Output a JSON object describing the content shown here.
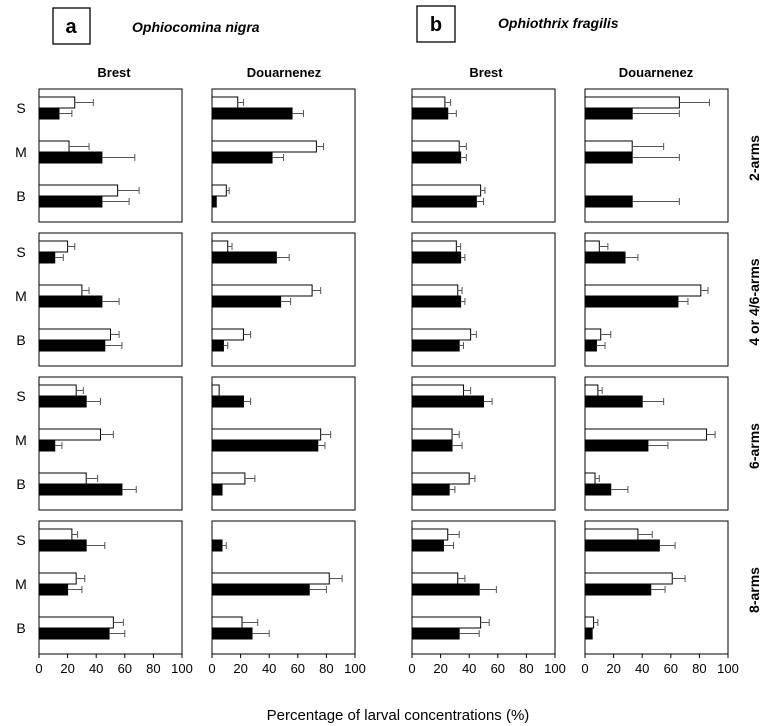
{
  "panels": [
    {
      "letter": "a",
      "species": "Ophiocomina nigra",
      "sites": [
        "Brest",
        "Douarnenez"
      ]
    },
    {
      "letter": "b",
      "species": "Ophiothrix fragilis",
      "sites": [
        "Brest",
        "Douarnenez"
      ]
    }
  ],
  "stage_labels": [
    "2-arms",
    "4 or 4/6-arms",
    "6-arms",
    "8-arms"
  ],
  "row_labels": [
    "S",
    "M",
    "B"
  ],
  "x_ticks": [
    "0",
    "20",
    "40",
    "60",
    "80",
    "100"
  ],
  "x_axis_label": "Percentage of larval concentrations (%)",
  "colors": {
    "open_bar": "#ffffff",
    "filled_bar": "#000000",
    "error_bar": "#555555",
    "frame": "#000000"
  },
  "chart_data": {
    "type": "bar",
    "orientation": "horizontal",
    "x_range": [
      0,
      100
    ],
    "series": [
      "open",
      "filled"
    ],
    "stages": [
      "2-arms",
      "4 or 4/6-arms",
      "6-arms",
      "8-arms"
    ],
    "rows": [
      "S",
      "M",
      "B"
    ],
    "subplots": [
      {
        "species": "Ophiocomina nigra",
        "site": "Brest",
        "stages": [
          {
            "S": {
              "open": [
                25,
                13
              ],
              "filled": [
                14,
                9
              ]
            },
            "M": {
              "open": [
                21,
                14
              ],
              "filled": [
                44,
                23
              ]
            },
            "B": {
              "open": [
                55,
                15
              ],
              "filled": [
                44,
                19
              ]
            }
          },
          {
            "S": {
              "open": [
                20,
                5
              ],
              "filled": [
                11,
                6
              ]
            },
            "M": {
              "open": [
                30,
                5
              ],
              "filled": [
                44,
                12
              ]
            },
            "B": {
              "open": [
                50,
                6
              ],
              "filled": [
                46,
                12
              ]
            }
          },
          {
            "S": {
              "open": [
                26,
                5
              ],
              "filled": [
                33,
                10
              ]
            },
            "M": {
              "open": [
                43,
                9
              ],
              "filled": [
                11,
                5
              ]
            },
            "B": {
              "open": [
                33,
                8
              ],
              "filled": [
                58,
                10
              ]
            }
          },
          {
            "S": {
              "open": [
                23,
                4
              ],
              "filled": [
                33,
                13
              ]
            },
            "M": {
              "open": [
                26,
                6
              ],
              "filled": [
                20,
                10
              ]
            },
            "B": {
              "open": [
                52,
                7
              ],
              "filled": [
                49,
                11
              ]
            }
          }
        ]
      },
      {
        "species": "Ophiocomina nigra",
        "site": "Douarnenez",
        "stages": [
          {
            "S": {
              "open": [
                18,
                4
              ],
              "filled": [
                56,
                8
              ]
            },
            "M": {
              "open": [
                73,
                5
              ],
              "filled": [
                42,
                8
              ]
            },
            "B": {
              "open": [
                10,
                2
              ],
              "filled": [
                3,
                0
              ]
            }
          },
          {
            "S": {
              "open": [
                11,
                3
              ],
              "filled": [
                45,
                9
              ]
            },
            "M": {
              "open": [
                70,
                6
              ],
              "filled": [
                48,
                7
              ]
            },
            "B": {
              "open": [
                22,
                5
              ],
              "filled": [
                8,
                3
              ]
            }
          },
          {
            "S": {
              "open": [
                5,
                0
              ],
              "filled": [
                22,
                5
              ]
            },
            "M": {
              "open": [
                76,
                7
              ],
              "filled": [
                74,
                5
              ]
            },
            "B": {
              "open": [
                23,
                7
              ],
              "filled": [
                7,
                0
              ]
            }
          },
          {
            "S": {
              "open": [
                0,
                0
              ],
              "filled": [
                7,
                3
              ]
            },
            "M": {
              "open": [
                82,
                9
              ],
              "filled": [
                68,
                12
              ]
            },
            "B": {
              "open": [
                21,
                11
              ],
              "filled": [
                28,
                12
              ]
            }
          }
        ]
      },
      {
        "species": "Ophiothrix fragilis",
        "site": "Brest",
        "stages": [
          {
            "S": {
              "open": [
                23,
                4
              ],
              "filled": [
                25,
                6
              ]
            },
            "M": {
              "open": [
                33,
                5
              ],
              "filled": [
                34,
                4
              ]
            },
            "B": {
              "open": [
                48,
                3
              ],
              "filled": [
                45,
                5
              ]
            }
          },
          {
            "S": {
              "open": [
                31,
                3
              ],
              "filled": [
                34,
                3
              ]
            },
            "M": {
              "open": [
                32,
                3
              ],
              "filled": [
                34,
                3
              ]
            },
            "B": {
              "open": [
                41,
                4
              ],
              "filled": [
                33,
                3
              ]
            }
          },
          {
            "S": {
              "open": [
                36,
                5
              ],
              "filled": [
                50,
                6
              ]
            },
            "M": {
              "open": [
                28,
                5
              ],
              "filled": [
                28,
                7
              ]
            },
            "B": {
              "open": [
                40,
                4
              ],
              "filled": [
                26,
                4
              ]
            }
          },
          {
            "S": {
              "open": [
                25,
                8
              ],
              "filled": [
                22,
                7
              ]
            },
            "M": {
              "open": [
                32,
                5
              ],
              "filled": [
                47,
                12
              ]
            },
            "B": {
              "open": [
                48,
                6
              ],
              "filled": [
                33,
                14
              ]
            }
          }
        ]
      },
      {
        "species": "Ophiothrix fragilis",
        "site": "Douarnenez",
        "stages": [
          {
            "S": {
              "open": [
                66,
                21
              ],
              "filled": [
                33,
                33
              ]
            },
            "M": {
              "open": [
                33,
                22
              ],
              "filled": [
                33,
                33
              ]
            },
            "B": {
              "open": [
                0,
                0
              ],
              "filled": [
                33,
                33
              ]
            }
          },
          {
            "S": {
              "open": [
                10,
                6
              ],
              "filled": [
                28,
                9
              ]
            },
            "M": {
              "open": [
                81,
                5
              ],
              "filled": [
                65,
                7
              ]
            },
            "B": {
              "open": [
                11,
                7
              ],
              "filled": [
                8,
                6
              ]
            }
          },
          {
            "S": {
              "open": [
                9,
                3
              ],
              "filled": [
                40,
                15
              ]
            },
            "M": {
              "open": [
                85,
                6
              ],
              "filled": [
                44,
                14
              ]
            },
            "B": {
              "open": [
                7,
                3
              ],
              "filled": [
                18,
                12
              ]
            }
          },
          {
            "S": {
              "open": [
                37,
                10
              ],
              "filled": [
                52,
                11
              ]
            },
            "M": {
              "open": [
                61,
                9
              ],
              "filled": [
                46,
                10
              ]
            },
            "B": {
              "open": [
                6,
                3
              ],
              "filled": [
                5,
                0
              ]
            }
          }
        ]
      }
    ]
  }
}
